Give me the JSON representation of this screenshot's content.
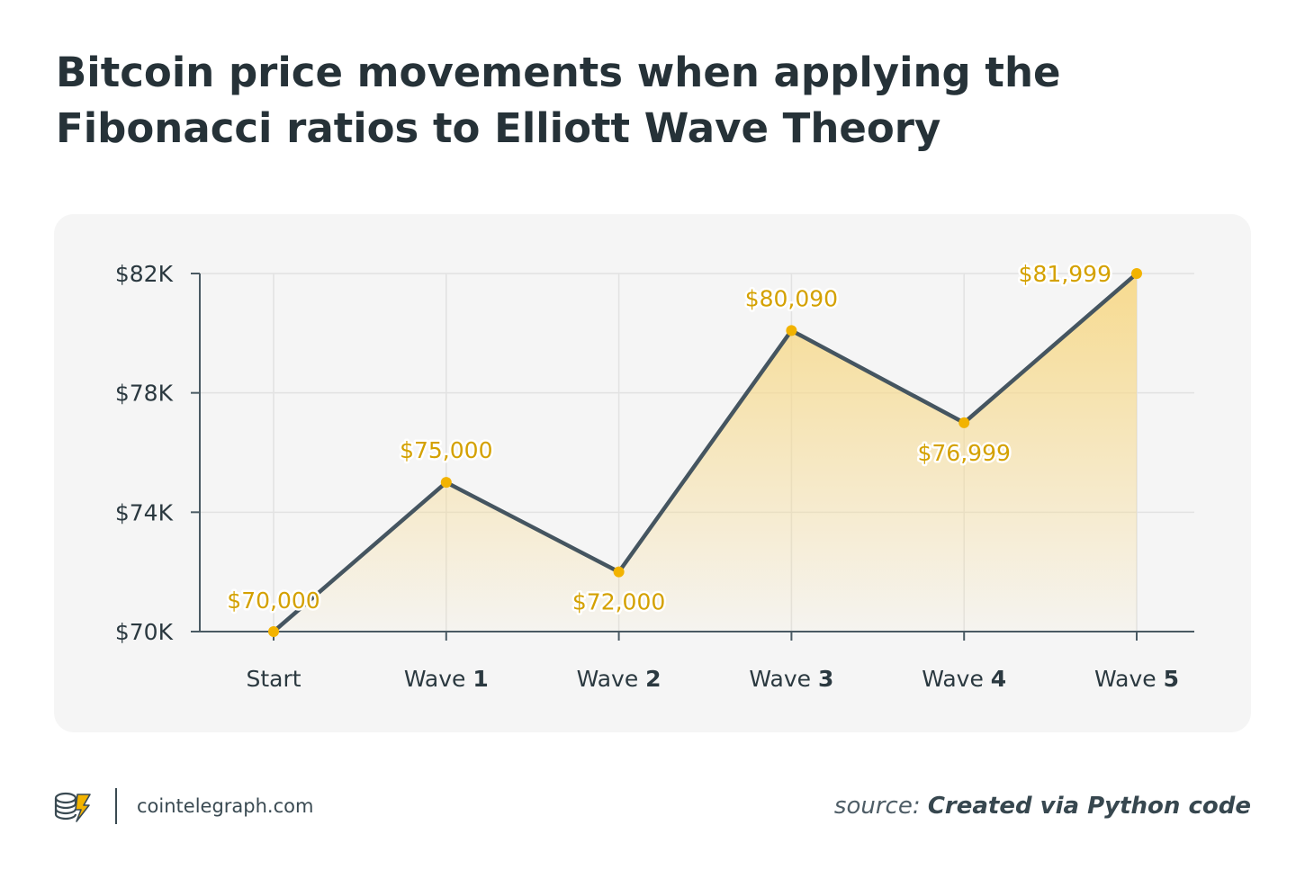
{
  "title": "Bitcoin price movements when applying the Fibonacci ratios to Elliott Wave Theory",
  "chart_data": {
    "type": "line",
    "title": "Bitcoin price movements when applying the Fibonacci ratios to Elliott Wave Theory",
    "categories": [
      {
        "prefix": "Start",
        "num": ""
      },
      {
        "prefix": "Wave ",
        "num": "1"
      },
      {
        "prefix": "Wave ",
        "num": "2"
      },
      {
        "prefix": "Wave ",
        "num": "3"
      },
      {
        "prefix": "Wave ",
        "num": "4"
      },
      {
        "prefix": "Wave ",
        "num": "5"
      }
    ],
    "values": [
      70000,
      75000,
      72000,
      80090,
      76999,
      81999
    ],
    "data_labels": [
      "$70,000",
      "$75,000",
      "$72,000",
      "$80,090",
      "$76,999",
      "$81,999"
    ],
    "label_positions": [
      "above",
      "above",
      "below",
      "above",
      "below",
      "left"
    ],
    "ylim": [
      70000,
      82000
    ],
    "yticks": [
      70000,
      74000,
      78000,
      82000
    ],
    "ytick_labels": [
      "$70K",
      "$74K",
      "$78K",
      "$82K"
    ],
    "xlabel": "",
    "ylabel": "",
    "grid": true,
    "area_fill": true,
    "colors": {
      "line": "#455560",
      "marker": "#f2b300",
      "label": "#d4a100",
      "fill": "#f7d98a",
      "grid": "#e2e2e2",
      "axis": "#4a5a63"
    }
  },
  "footer": {
    "brand_icon": "cointelegraph-logo-icon",
    "brand": "cointelegraph.com",
    "source_prefix": "source: ",
    "source_text": "Created via Python code"
  }
}
